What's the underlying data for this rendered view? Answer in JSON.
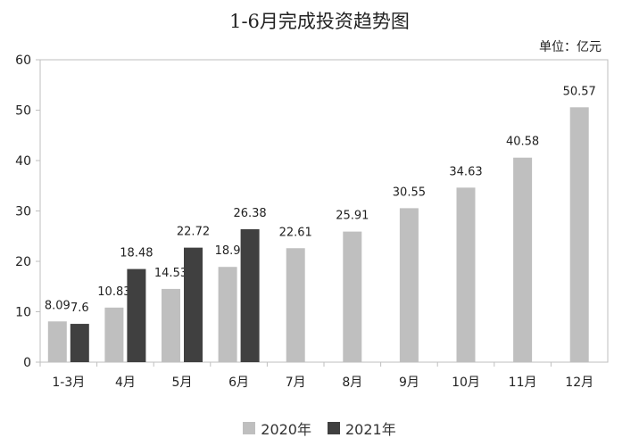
{
  "chart_data": {
    "type": "bar",
    "title": "1-6月完成投资趋势图",
    "unit_label": "单位：亿元",
    "categories": [
      "1-3月",
      "4月",
      "5月",
      "6月",
      "7月",
      "8月",
      "9月",
      "10月",
      "11月",
      "12月"
    ],
    "series": [
      {
        "name": "2020年",
        "color": "#bfbfbf",
        "values": [
          8.09,
          10.83,
          14.53,
          18.9,
          22.61,
          25.91,
          30.55,
          34.63,
          40.58,
          50.57
        ],
        "labels": [
          "8.09",
          "10.83",
          "14.53",
          "18.9",
          "22.61",
          "25.91",
          "30.55",
          "34.63",
          "40.58",
          "50.57"
        ]
      },
      {
        "name": "2021年",
        "color": "#404040",
        "values": [
          7.6,
          18.48,
          22.72,
          26.38,
          null,
          null,
          null,
          null,
          null,
          null
        ],
        "labels": [
          "7.6",
          "18.48",
          "22.72",
          "26.38",
          "",
          "",
          "",
          "",
          "",
          ""
        ]
      }
    ],
    "ylim": [
      0,
      60
    ],
    "yticks": [
      0,
      10,
      20,
      30,
      40,
      50,
      60
    ],
    "legend_position": "bottom",
    "grid": false
  }
}
